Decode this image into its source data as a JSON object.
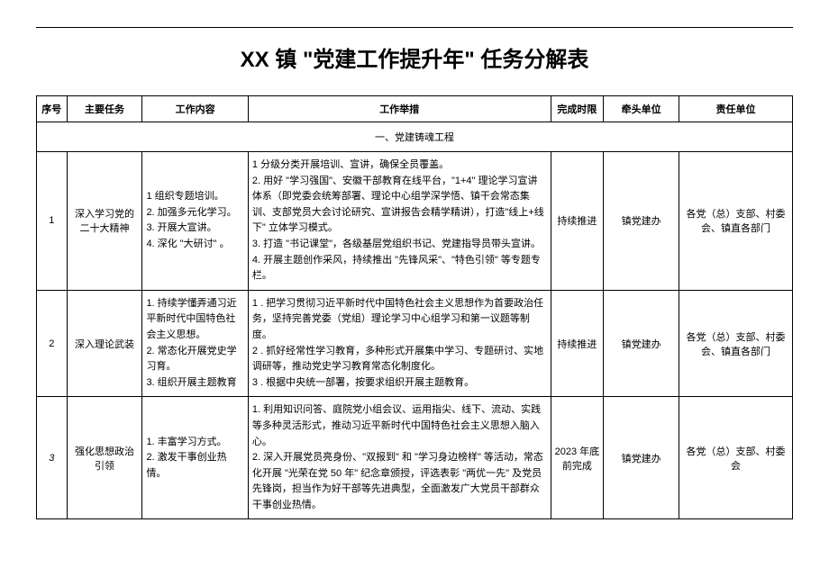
{
  "title": "XX 镇 \"党建工作提升年\" 任务分解表",
  "headers": {
    "seq": "序号",
    "task": "主要任务",
    "content": "工作内容",
    "measure": "工作举措",
    "time": "完成时限",
    "lead": "牵头单位",
    "resp": "责任单位"
  },
  "section1": {
    "title": "一、党建铸魂工程"
  },
  "rows": [
    {
      "seq": "1",
      "task": "深入学习党的二十大精神",
      "content": "1 组织专题培训。\n2. 加强多元化学习。\n3. 开展大宣讲。\n4. 深化 \"大研讨\" 。",
      "measure": "1 分级分类开展培训、宣讲，确保全员覆盖。\n2. 用好 \"学习强国\"、安徽干部教育在线平台，\"1+4\" 理论学习宣讲体系（即党委会统筹部署、理论中心组学深学悟、镇干会常态集训、支部党员大会讨论研究、宣讲报告会精学精讲），打造\"线上+线下\" 立体学习模式。\n3. 打造 \"书记课堂\"，各级基层党组织书记、党建指导员带头宣讲。\n4. 开展主题创作采风，持续推出 \"先锋风采\"、\"特色引领\" 等专题专栏。",
      "time": "持续推进",
      "lead": "镇党建办",
      "resp": "各党（总）支部、村委会、镇直各部门"
    },
    {
      "seq": "2",
      "task": "深入理论武装",
      "content": "1. 持续学懂弄通习近平新时代中国特色社会主义思想。\n2. 常态化开展党史学习育。\n3. 组织开展主题教育",
      "measure": "1    . 把学习贯彻习近平新时代中国特色社会主义思想作为首要政治任务，坚持完善党委（党组）理论学习中心组学习和第一议题等制度。\n2    . 抓好经常性学习教育，多种形式开展集中学习、专题研讨、实地调研等，推动党史学习教育常态化制度化。\n3 . 根据中央统一部署，按要求组织开展主题教育。",
      "time": "持续推进",
      "lead": "镇党建办",
      "resp": "各党（总）支部、村委会、镇直各部门"
    },
    {
      "seq": "3",
      "task": "强化思想政治引领",
      "content": "1. 丰富学习方式。\n2. 激发干事创业热情。",
      "measure": "1. 利用知识问答、庭院党小组会议、运用指尖、线下、流动、实践等多种灵活形式，推动习近平新时代中国特色社会主义思想入脑入心。\n2. 深入开展党员亮身份、\"双报到\" 和 \"学习身边榜样\" 等活动，常态化开展 \"光荣在党 50 年\" 纪念章颁授，评选表彰 \"两优一先\" 及党员先锋岗，担当作为好干部等先进典型，全面激发广大党员干部群众干事创业热情。",
      "time": "2023 年底前完成",
      "lead": "镇党建办",
      "resp": "各党（总）支部、村委会"
    }
  ]
}
